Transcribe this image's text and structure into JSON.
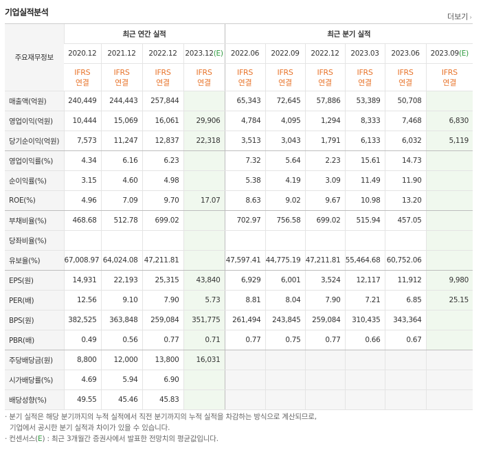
{
  "title": "기업실적분석",
  "more": {
    "label": "더보기",
    "icon": "chevron-right-icon"
  },
  "header": {
    "corner": "주요재무정보",
    "annual_group": "최근 연간 실적",
    "quarter_group": "최근 분기 실적",
    "annual_periods": [
      "2020.12",
      "2021.12",
      "2022.12",
      "2023.12(E)"
    ],
    "quarter_periods": [
      "2022.06",
      "2022.09",
      "2022.12",
      "2023.03",
      "2023.06",
      "2023.09(E)"
    ],
    "ifrs_top": "IFRS",
    "ifrs_bottom": "연결"
  },
  "rows": [
    {
      "label": "매출액(억원)",
      "values": [
        "240,449",
        "244,443",
        "257,844",
        "",
        "65,343",
        "72,645",
        "57,886",
        "53,389",
        "50,708",
        ""
      ]
    },
    {
      "label": "영업이익(억원)",
      "values": [
        "10,444",
        "15,069",
        "16,061",
        "29,906",
        "4,784",
        "4,095",
        "1,294",
        "8,333",
        "7,468",
        "6,830"
      ]
    },
    {
      "label": "당기순이익(억원)",
      "values": [
        "7,573",
        "11,247",
        "12,837",
        "22,318",
        "3,513",
        "3,043",
        "1,791",
        "6,133",
        "6,032",
        "5,119"
      ]
    },
    {
      "label": "영업이익률(%)",
      "values": [
        "4.34",
        "6.16",
        "6.23",
        "",
        "7.32",
        "5.64",
        "2.23",
        "15.61",
        "14.73",
        ""
      ]
    },
    {
      "label": "순이익률(%)",
      "values": [
        "3.15",
        "4.60",
        "4.98",
        "",
        "5.38",
        "4.19",
        "3.09",
        "11.49",
        "11.90",
        ""
      ]
    },
    {
      "label": "ROE(%)",
      "values": [
        "4.96",
        "7.09",
        "9.70",
        "17.07",
        "8.63",
        "9.02",
        "9.67",
        "10.98",
        "13.20",
        ""
      ]
    },
    {
      "label": "부채비율(%)",
      "values": [
        "468.68",
        "512.78",
        "699.02",
        "",
        "702.97",
        "756.58",
        "699.02",
        "515.94",
        "457.05",
        ""
      ]
    },
    {
      "label": "당좌비율(%)",
      "values": [
        "",
        "",
        "",
        "",
        "",
        "",
        "",
        "",
        "",
        ""
      ]
    },
    {
      "label": "유보율(%)",
      "values": [
        "67,008.97",
        "64,024.08",
        "47,211.81",
        "",
        "47,597.41",
        "44,775.19",
        "47,211.81",
        "55,464.68",
        "60,752.06",
        ""
      ]
    },
    {
      "label": "EPS(원)",
      "values": [
        "14,931",
        "22,193",
        "25,315",
        "43,840",
        "6,929",
        "6,001",
        "3,524",
        "12,117",
        "11,912",
        "9,980"
      ]
    },
    {
      "label": "PER(배)",
      "values": [
        "12.56",
        "9.10",
        "7.90",
        "5.73",
        "8.81",
        "8.04",
        "7.90",
        "7.21",
        "6.85",
        "25.15"
      ]
    },
    {
      "label": "BPS(원)",
      "values": [
        "382,525",
        "363,848",
        "259,084",
        "351,775",
        "261,494",
        "243,845",
        "259,084",
        "310,435",
        "343,364",
        ""
      ]
    },
    {
      "label": "PBR(배)",
      "values": [
        "0.49",
        "0.56",
        "0.77",
        "0.71",
        "0.77",
        "0.75",
        "0.77",
        "0.66",
        "0.67",
        ""
      ]
    },
    {
      "label": "주당배당금(원)",
      "values": [
        "8,800",
        "12,000",
        "13,800",
        "16,031",
        null,
        null,
        null,
        null,
        null,
        null
      ]
    },
    {
      "label": "시가배당률(%)",
      "values": [
        "4.69",
        "5.94",
        "6.90",
        "",
        null,
        null,
        null,
        null,
        null,
        null
      ]
    },
    {
      "label": "배당성향(%)",
      "values": [
        "49.55",
        "45.46",
        "45.83",
        "",
        null,
        null,
        null,
        null,
        null,
        null
      ]
    }
  ],
  "notes": {
    "line1": "· 분기 실적은 해당 분기까지의 누적 실적에서 직전 분기까지의 누적 실적을 차감하는 방식으로 계산되므로,",
    "line2": "기업에서 공시한 분기 실적과 차이가 있을 수 있습니다.",
    "line3_prefix": "· 컨센서스(",
    "line3_e": "E",
    "line3_suffix": ") : 최근 3개월간 증권사에서 발표한 전망치의 평균값입니다."
  },
  "colors": {
    "ifrs": "#e8742b",
    "estimate": "#2e9a3e",
    "estimate_bg": "#f0f8ee"
  }
}
